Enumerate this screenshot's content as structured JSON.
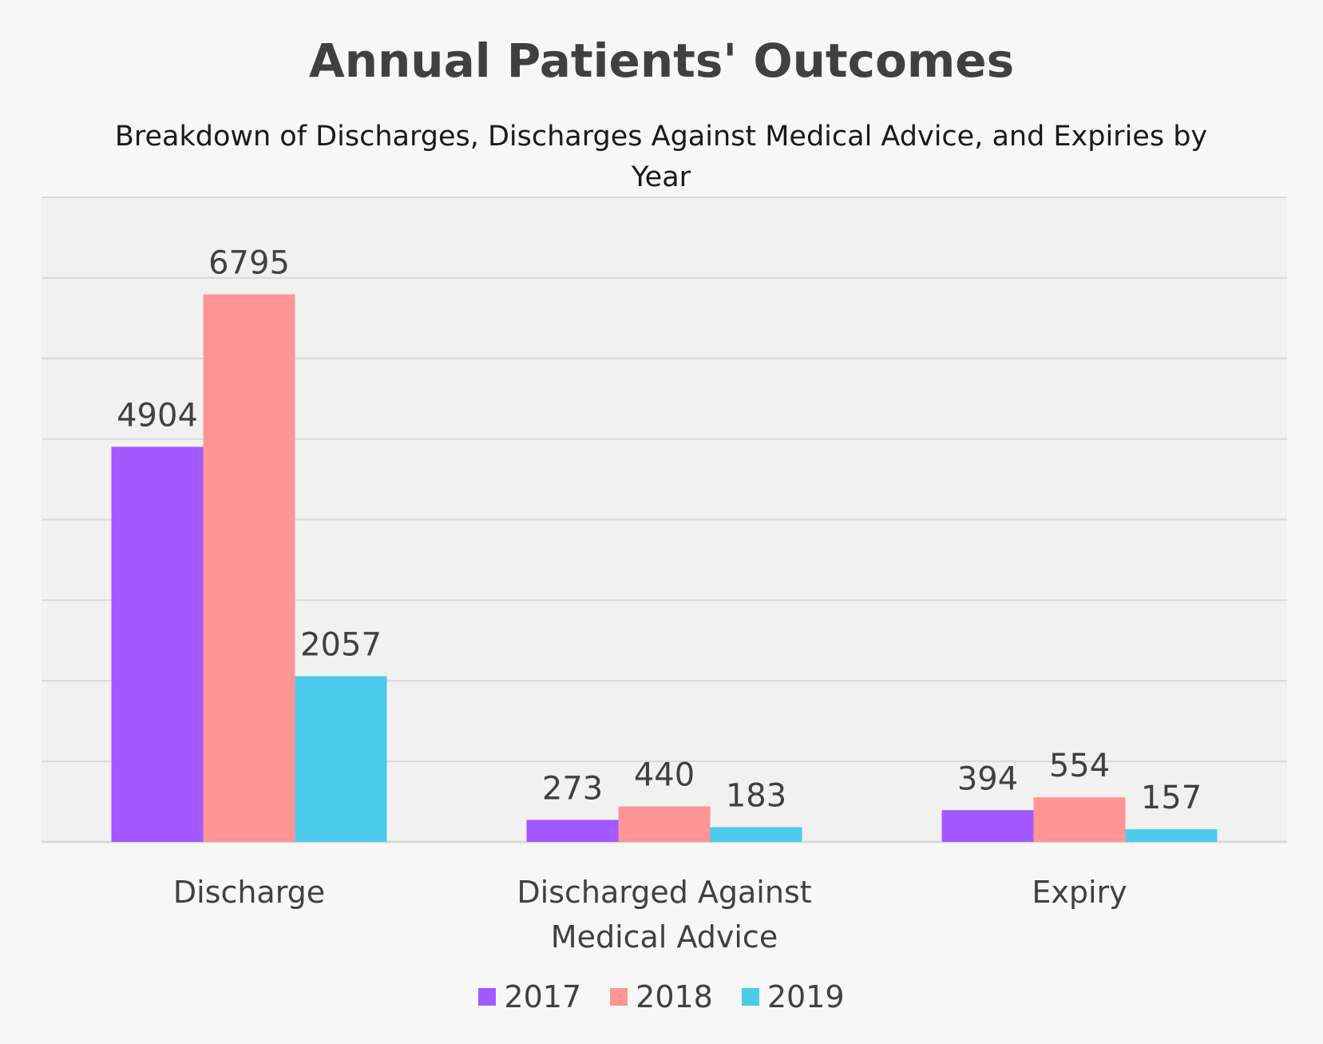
{
  "chart_data": {
    "type": "bar",
    "title": "Annual Patients' Outcomes",
    "subtitle": "Breakdown of Discharges, Discharges Against Medical Advice, and Expiries by Year",
    "categories": [
      "Discharge",
      "Discharged Against Medical Advice",
      "Expiry"
    ],
    "series": [
      {
        "name": "2017",
        "color": "#a259ff",
        "values": [
          4904,
          273,
          394
        ]
      },
      {
        "name": "2018",
        "color": "#ff9595",
        "values": [
          6795,
          440,
          554
        ]
      },
      {
        "name": "2019",
        "color": "#4ccbea",
        "values": [
          2057,
          183,
          157
        ]
      }
    ],
    "xlabel": "",
    "ylabel": "",
    "ylim": [
      0,
      8000
    ],
    "grid": true,
    "legend_position": "bottom",
    "plot_background": "#f2f1f2"
  }
}
